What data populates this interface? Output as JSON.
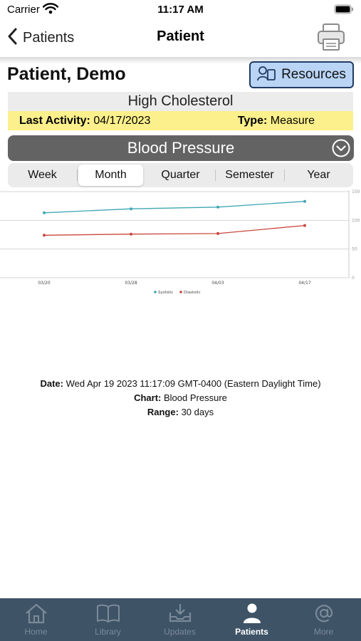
{
  "status_bar": {
    "carrier": "Carrier",
    "time": "11:17 AM"
  },
  "nav": {
    "back_label": "Patients",
    "title": "Patient"
  },
  "patient": {
    "name": "Patient, Demo"
  },
  "resources": {
    "label": "Resources"
  },
  "condition": {
    "name": "High Cholesterol"
  },
  "activity": {
    "last_activity_label": "Last Activity:",
    "last_activity_value": "04/17/2023",
    "type_label": "Type:",
    "type_value": "Measure"
  },
  "chart_selector": {
    "label": "Blood Pressure"
  },
  "ranges": {
    "options": [
      "Week",
      "Month",
      "Quarter",
      "Semester",
      "Year"
    ],
    "selected": "Month"
  },
  "chart_data": {
    "type": "line",
    "x": [
      "03/20",
      "03/28",
      "04/03",
      "04/17"
    ],
    "series": [
      {
        "name": "Systolic",
        "color": "#3fa7b5",
        "values": [
          113,
          120,
          123,
          133
        ]
      },
      {
        "name": "Diastolic",
        "color": "#c9463d",
        "values": [
          74,
          76,
          77,
          91
        ]
      }
    ],
    "yticks": [
      "150",
      "100",
      "50",
      "0"
    ],
    "ylim": [
      0,
      150
    ],
    "grid": true,
    "legend": "bottom"
  },
  "info": {
    "date_label": "Date:",
    "date_value": "Wed Apr 19 2023 11:17:09 GMT-0400 (Eastern Daylight Time)",
    "chart_label": "Chart:",
    "chart_value": "Blood Pressure",
    "range_label": "Range:",
    "range_value": "30 days"
  },
  "tabs": [
    {
      "label": "Home",
      "icon": "home-icon"
    },
    {
      "label": "Library",
      "icon": "book-icon"
    },
    {
      "label": "Updates",
      "icon": "download-tray-icon"
    },
    {
      "label": "Patients",
      "icon": "person-icon",
      "active": true
    },
    {
      "label": "More",
      "icon": "at-sign-icon"
    }
  ],
  "colors": {
    "accent_blue": "#b9d4f4",
    "highlight_yellow": "#fbf08b",
    "selector_gray": "#636363",
    "tab_bar_bg": "#3e5366"
  }
}
